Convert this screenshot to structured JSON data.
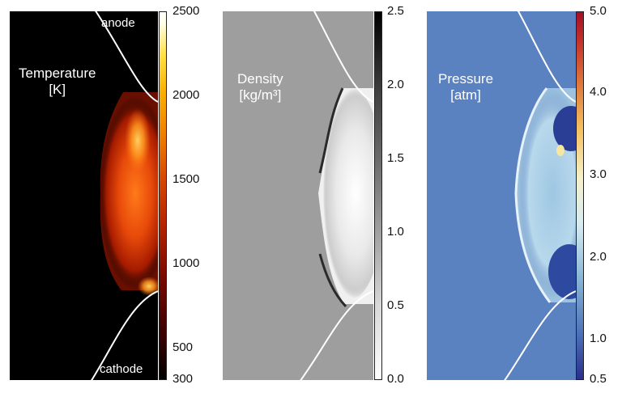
{
  "panels": {
    "temperature": {
      "label_line1": "Temperature",
      "label_line2": "[K]",
      "anode_label": "anode",
      "cathode_label": "cathode",
      "colorbar_ticks": [
        "2500",
        "2000",
        "1500",
        "1000",
        "500",
        "300"
      ]
    },
    "density": {
      "label_line1": "Density",
      "label_line2": "[kg/m³]",
      "colorbar_ticks": [
        "2.5",
        "2.0",
        "1.5",
        "1.0",
        "0.5",
        "0.0"
      ]
    },
    "pressure": {
      "label_line1": "Pressure",
      "label_line2": "[atm]",
      "colorbar_ticks": [
        "5.0",
        "4.0",
        "3.0",
        "2.0",
        "1.0",
        "0.5"
      ]
    }
  },
  "colors": {
    "temperature_bg": "#000000",
    "density_bg": "#9e9e9e",
    "pressure_bg": "#5b82c0",
    "electrode_line": "#ffffff"
  }
}
